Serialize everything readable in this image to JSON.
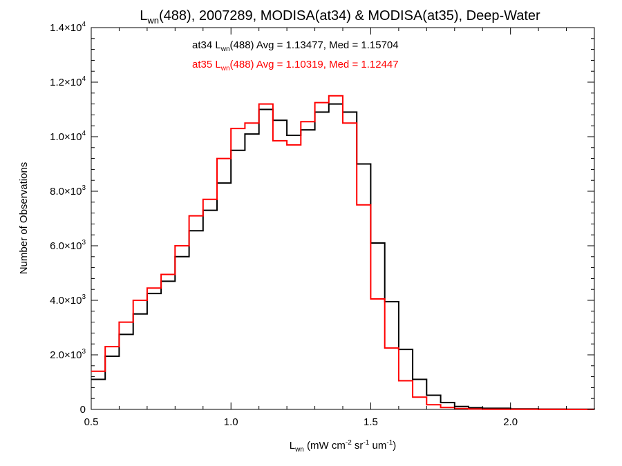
{
  "chart_data": {
    "type": "line",
    "title": {
      "pre": "L",
      "sub": "wn",
      "post": "(488), 2007289, MODISA(at34) & MODISA(at35), Deep-Water"
    },
    "xlabel": {
      "pre": "L",
      "sub": "wn",
      "mid1": " (mW cm",
      "sup1": "-2",
      "mid2": " sr",
      "sup2": "-1",
      "mid3": " um",
      "sup3": "-1",
      "post": ")"
    },
    "ylabel": "Number of Observations",
    "xlim": [
      0.5,
      2.3
    ],
    "ylim": [
      0,
      14000
    ],
    "x_ticks": [
      {
        "value": 0.5,
        "label": "0.5"
      },
      {
        "value": 1.0,
        "label": "1.0"
      },
      {
        "value": 1.5,
        "label": "1.5"
      },
      {
        "value": 2.0,
        "label": "2.0"
      }
    ],
    "y_ticks": [
      {
        "value": 0,
        "base": "0",
        "exp": ""
      },
      {
        "value": 2000,
        "base": "2.0×10",
        "exp": "3"
      },
      {
        "value": 4000,
        "base": "4.0×10",
        "exp": "3"
      },
      {
        "value": 6000,
        "base": "6.0×10",
        "exp": "3"
      },
      {
        "value": 8000,
        "base": "8.0×10",
        "exp": "3"
      },
      {
        "value": 10000,
        "base": "1.0×10",
        "exp": "4"
      },
      {
        "value": 12000,
        "base": "1.2×10",
        "exp": "4"
      },
      {
        "value": 14000,
        "base": "1.4×10",
        "exp": "4"
      }
    ],
    "legend": [
      {
        "pre": "at34 L",
        "sub": "wn",
        "post": "(488) Avg = 1.13477, Med = 1.15704",
        "color": "#000000"
      },
      {
        "pre": "at35 L",
        "sub": "wn",
        "post": "(488) Avg = 1.10319, Med = 1.12447",
        "color": "#ff0000"
      }
    ],
    "series": [
      {
        "color": "#000000",
        "x": [
          0.5,
          0.55,
          0.6,
          0.65,
          0.7,
          0.75,
          0.8,
          0.85,
          0.9,
          0.95,
          1.0,
          1.05,
          1.1,
          1.15,
          1.2,
          1.25,
          1.3,
          1.35,
          1.4,
          1.45,
          1.5,
          1.55,
          1.6,
          1.65,
          1.7,
          1.75,
          1.8,
          1.85,
          1.9,
          2.0,
          2.1,
          2.2,
          2.3
        ],
        "y": [
          1100,
          1950,
          2750,
          3500,
          4250,
          4700,
          5600,
          6550,
          7300,
          8300,
          9500,
          10100,
          11000,
          10600,
          10050,
          10250,
          10900,
          11200,
          10900,
          9000,
          6100,
          3950,
          2200,
          1100,
          520,
          250,
          110,
          60,
          40,
          20,
          10,
          5,
          0
        ]
      },
      {
        "color": "#ff0000",
        "x": [
          0.5,
          0.55,
          0.6,
          0.65,
          0.7,
          0.75,
          0.8,
          0.85,
          0.9,
          0.95,
          1.0,
          1.05,
          1.1,
          1.15,
          1.2,
          1.25,
          1.3,
          1.35,
          1.4,
          1.45,
          1.5,
          1.55,
          1.6,
          1.65,
          1.7,
          1.75,
          1.8,
          1.85,
          1.9,
          2.0,
          2.1,
          2.2,
          2.3
        ],
        "y": [
          1400,
          2300,
          3200,
          4000,
          4450,
          4950,
          6000,
          7100,
          7700,
          9200,
          10300,
          10500,
          11200,
          9850,
          9700,
          10550,
          11250,
          11500,
          10500,
          7500,
          4050,
          2250,
          1050,
          450,
          170,
          70,
          30,
          15,
          8,
          4,
          2,
          1,
          0
        ]
      }
    ]
  }
}
